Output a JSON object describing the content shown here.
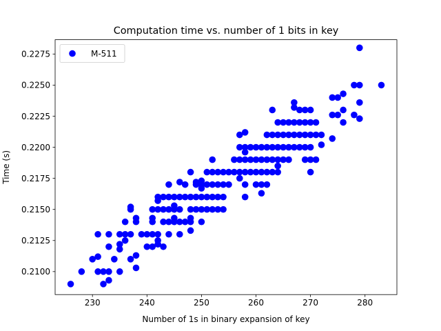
{
  "chart_data": {
    "type": "scatter",
    "title": "Computation time vs. number of 1 bits in key",
    "xlabel": "Number of 1s in binary expansion of key",
    "ylabel": "Time (s)",
    "xlim": [
      223.15,
      285.85
    ],
    "ylim": [
      0.20815,
      0.22865
    ],
    "xticks": [
      230,
      240,
      250,
      260,
      270,
      280
    ],
    "yticks": [
      0.21,
      0.2125,
      0.215,
      0.2175,
      0.22,
      0.2225,
      0.225,
      0.2275
    ],
    "xtick_labels": [
      "230",
      "240",
      "250",
      "260",
      "270",
      "280"
    ],
    "ytick_labels": [
      "0.2100",
      "0.2125",
      "0.2150",
      "0.2175",
      "0.2200",
      "0.2225",
      "0.2250",
      "0.2275"
    ],
    "grid": false,
    "legend_position": "top-left",
    "series": [
      {
        "name": "M-511",
        "color": "#0000ff",
        "marker": "circle",
        "points": [
          [
            226,
            0.209
          ],
          [
            228,
            0.21
          ],
          [
            230,
            0.211
          ],
          [
            231,
            0.21
          ],
          [
            231,
            0.2112
          ],
          [
            231,
            0.213
          ],
          [
            232,
            0.209
          ],
          [
            232,
            0.21
          ],
          [
            233,
            0.2093
          ],
          [
            233,
            0.21
          ],
          [
            233,
            0.212
          ],
          [
            233,
            0.213
          ],
          [
            234,
            0.211
          ],
          [
            235,
            0.21
          ],
          [
            235,
            0.2118
          ],
          [
            235,
            0.2122
          ],
          [
            235,
            0.213
          ],
          [
            236,
            0.2125
          ],
          [
            236,
            0.213
          ],
          [
            236,
            0.214
          ],
          [
            237,
            0.211
          ],
          [
            237,
            0.213
          ],
          [
            237,
            0.215
          ],
          [
            237,
            0.2152
          ],
          [
            238,
            0.2103
          ],
          [
            238,
            0.2113
          ],
          [
            238,
            0.214
          ],
          [
            238,
            0.2143
          ],
          [
            239,
            0.213
          ],
          [
            240,
            0.212
          ],
          [
            240,
            0.213
          ],
          [
            241,
            0.212
          ],
          [
            241,
            0.213
          ],
          [
            241,
            0.214
          ],
          [
            241,
            0.2143
          ],
          [
            241,
            0.215
          ],
          [
            242,
            0.2122
          ],
          [
            242,
            0.2125
          ],
          [
            242,
            0.213
          ],
          [
            242,
            0.215
          ],
          [
            242,
            0.2157
          ],
          [
            242,
            0.216
          ],
          [
            243,
            0.212
          ],
          [
            243,
            0.214
          ],
          [
            243,
            0.215
          ],
          [
            243,
            0.216
          ],
          [
            244,
            0.213
          ],
          [
            244,
            0.214
          ],
          [
            244,
            0.215
          ],
          [
            244,
            0.216
          ],
          [
            244,
            0.217
          ],
          [
            245,
            0.214
          ],
          [
            245,
            0.2143
          ],
          [
            245,
            0.215
          ],
          [
            245,
            0.2153
          ],
          [
            245,
            0.216
          ],
          [
            246,
            0.213
          ],
          [
            246,
            0.214
          ],
          [
            246,
            0.215
          ],
          [
            246,
            0.216
          ],
          [
            246,
            0.2172
          ],
          [
            247,
            0.214
          ],
          [
            247,
            0.216
          ],
          [
            247,
            0.217
          ],
          [
            248,
            0.2133
          ],
          [
            248,
            0.214
          ],
          [
            248,
            0.2143
          ],
          [
            248,
            0.215
          ],
          [
            248,
            0.216
          ],
          [
            248,
            0.218
          ],
          [
            249,
            0.215
          ],
          [
            249,
            0.216
          ],
          [
            249,
            0.217
          ],
          [
            249,
            0.2172
          ],
          [
            250,
            0.214
          ],
          [
            250,
            0.215
          ],
          [
            250,
            0.216
          ],
          [
            250,
            0.2167
          ],
          [
            250,
            0.217
          ],
          [
            250,
            0.2173
          ],
          [
            251,
            0.215
          ],
          [
            251,
            0.216
          ],
          [
            251,
            0.217
          ],
          [
            251,
            0.218
          ],
          [
            252,
            0.215
          ],
          [
            252,
            0.216
          ],
          [
            252,
            0.217
          ],
          [
            252,
            0.218
          ],
          [
            252,
            0.219
          ],
          [
            253,
            0.215
          ],
          [
            253,
            0.216
          ],
          [
            253,
            0.217
          ],
          [
            253,
            0.218
          ],
          [
            254,
            0.215
          ],
          [
            254,
            0.216
          ],
          [
            254,
            0.217
          ],
          [
            254,
            0.218
          ],
          [
            255,
            0.217
          ],
          [
            255,
            0.218
          ],
          [
            256,
            0.218
          ],
          [
            256,
            0.219
          ],
          [
            257,
            0.2175
          ],
          [
            257,
            0.218
          ],
          [
            257,
            0.219
          ],
          [
            257,
            0.22
          ],
          [
            257,
            0.221
          ],
          [
            258,
            0.216
          ],
          [
            258,
            0.217
          ],
          [
            258,
            0.218
          ],
          [
            258,
            0.219
          ],
          [
            258,
            0.2196
          ],
          [
            258,
            0.22
          ],
          [
            258,
            0.2212
          ],
          [
            259,
            0.218
          ],
          [
            259,
            0.219
          ],
          [
            259,
            0.22
          ],
          [
            260,
            0.217
          ],
          [
            260,
            0.218
          ],
          [
            260,
            0.219
          ],
          [
            260,
            0.22
          ],
          [
            261,
            0.2163
          ],
          [
            261,
            0.217
          ],
          [
            261,
            0.218
          ],
          [
            261,
            0.219
          ],
          [
            261,
            0.22
          ],
          [
            262,
            0.217
          ],
          [
            262,
            0.218
          ],
          [
            262,
            0.219
          ],
          [
            262,
            0.22
          ],
          [
            262,
            0.221
          ],
          [
            263,
            0.218
          ],
          [
            263,
            0.219
          ],
          [
            263,
            0.22
          ],
          [
            263,
            0.221
          ],
          [
            263,
            0.223
          ],
          [
            264,
            0.218
          ],
          [
            264,
            0.2185
          ],
          [
            264,
            0.219
          ],
          [
            264,
            0.22
          ],
          [
            264,
            0.221
          ],
          [
            264,
            0.222
          ],
          [
            265,
            0.219
          ],
          [
            265,
            0.22
          ],
          [
            265,
            0.221
          ],
          [
            265,
            0.222
          ],
          [
            266,
            0.219
          ],
          [
            266,
            0.22
          ],
          [
            266,
            0.221
          ],
          [
            266,
            0.222
          ],
          [
            267,
            0.22
          ],
          [
            267,
            0.221
          ],
          [
            267,
            0.222
          ],
          [
            267,
            0.2232
          ],
          [
            267,
            0.2236
          ],
          [
            268,
            0.22
          ],
          [
            268,
            0.221
          ],
          [
            268,
            0.222
          ],
          [
            268,
            0.223
          ],
          [
            269,
            0.219
          ],
          [
            269,
            0.22
          ],
          [
            269,
            0.221
          ],
          [
            269,
            0.222
          ],
          [
            269,
            0.223
          ],
          [
            270,
            0.218
          ],
          [
            270,
            0.219
          ],
          [
            270,
            0.22
          ],
          [
            270,
            0.221
          ],
          [
            270,
            0.222
          ],
          [
            270,
            0.223
          ],
          [
            271,
            0.219
          ],
          [
            271,
            0.221
          ],
          [
            271,
            0.222
          ],
          [
            272,
            0.2202
          ],
          [
            272,
            0.221
          ],
          [
            274,
            0.2207
          ],
          [
            274,
            0.2226
          ],
          [
            274,
            0.224
          ],
          [
            275,
            0.2226
          ],
          [
            275,
            0.224
          ],
          [
            276,
            0.222
          ],
          [
            276,
            0.223
          ],
          [
            276,
            0.2243
          ],
          [
            278,
            0.2226
          ],
          [
            278,
            0.225
          ],
          [
            279,
            0.2223
          ],
          [
            279,
            0.2236
          ],
          [
            279,
            0.225
          ],
          [
            279,
            0.228
          ],
          [
            283,
            0.225
          ]
        ]
      }
    ]
  }
}
